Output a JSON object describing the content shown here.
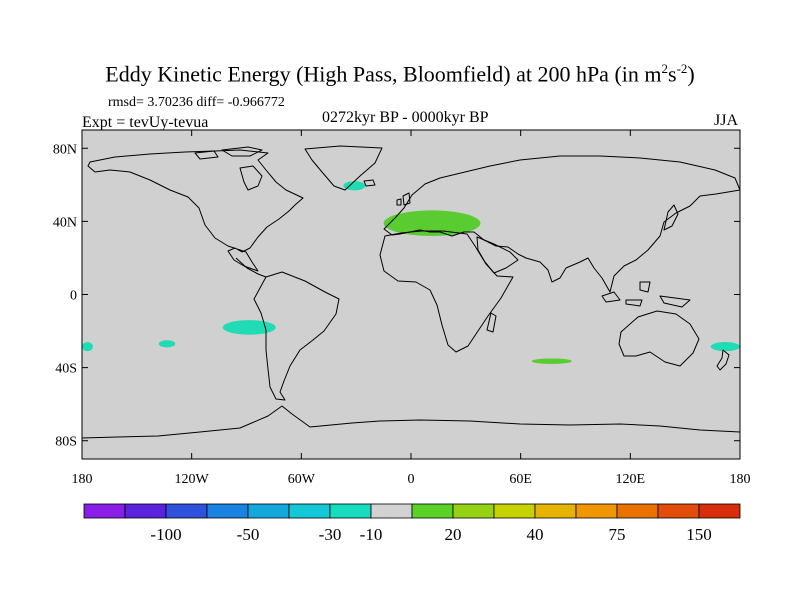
{
  "title": {
    "main": "Eddy Kinetic Energy (High Pass, Bloomfield) at 200 hPa (in m",
    "sup1": "2",
    "mid": "s",
    "sup2": "-2",
    "end": ")"
  },
  "stats": "rmsd= 3.70236 diff= -0.966772",
  "expt": "Expt = tevUy-tevua",
  "period": "0272kyr BP - 0000kyr BP",
  "season": "JJA",
  "lat_ticks": [
    "80N",
    "40N",
    "0",
    "40S",
    "80S"
  ],
  "lon_ticks": [
    "180",
    "120W",
    "60W",
    "0",
    "60E",
    "120E",
    "180"
  ],
  "colorbar": {
    "colors": [
      "#8a1ee6",
      "#5a22dc",
      "#2e52dc",
      "#1a82e0",
      "#14a8dc",
      "#14c8d8",
      "#18dcbe",
      "#d2d2d2",
      "#5ad228",
      "#96d214",
      "#c8d200",
      "#e6b400",
      "#f09600",
      "#ea7000",
      "#e24e0a",
      "#d82e0c"
    ],
    "labels": [
      "-100",
      "-50",
      "-30",
      "-10",
      "20",
      "40",
      "75",
      "150"
    ]
  },
  "map_colors": {
    "ocean_land": "#d0d0d0",
    "positive": "#58cc30",
    "negative": "#20dcb4"
  },
  "chart_data": {
    "type": "heatmap",
    "title": "Eddy Kinetic Energy (High Pass, Bloomfield) at 200 hPa (in m2s-2)",
    "projection": "cylindrical equidistant",
    "xlim": [
      -180,
      180
    ],
    "ylim": [
      -90,
      90
    ],
    "contour_levels": [
      -100,
      -50,
      -30,
      -10,
      20,
      40,
      75,
      150
    ],
    "background_class": "-10 to 20",
    "anomalies": [
      {
        "region": "Mediterranean / Europe",
        "lon_range": [
          -15,
          38
        ],
        "lat_range": [
          32,
          46
        ],
        "class": "20 to 40"
      },
      {
        "region": "South Indian Ocean",
        "lon_range": [
          66,
          88
        ],
        "lat_range": [
          -38,
          -35
        ],
        "class": "20 to 40"
      },
      {
        "region": "North Atlantic",
        "lon_range": [
          -37,
          -25
        ],
        "lat_range": [
          57,
          62
        ],
        "class": "-30 to -10"
      },
      {
        "region": "South-East Pacific",
        "lon_range": [
          -103,
          -74
        ],
        "lat_range": [
          -22,
          -14
        ],
        "class": "-30 to -10"
      },
      {
        "region": "South Pacific",
        "lon_range": [
          -138,
          -129
        ],
        "lat_range": [
          -29,
          -25
        ],
        "class": "-30 to -10"
      },
      {
        "region": "Tasman Sea / New Zealand",
        "lon_range": [
          164,
          180
        ],
        "lat_range": [
          -31,
          -26
        ],
        "class": "-30 to -10"
      },
      {
        "region": "South Pacific dateline",
        "lon_range": [
          -180,
          -174
        ],
        "lat_range": [
          -31,
          -26
        ],
        "class": "-30 to -10"
      }
    ]
  }
}
